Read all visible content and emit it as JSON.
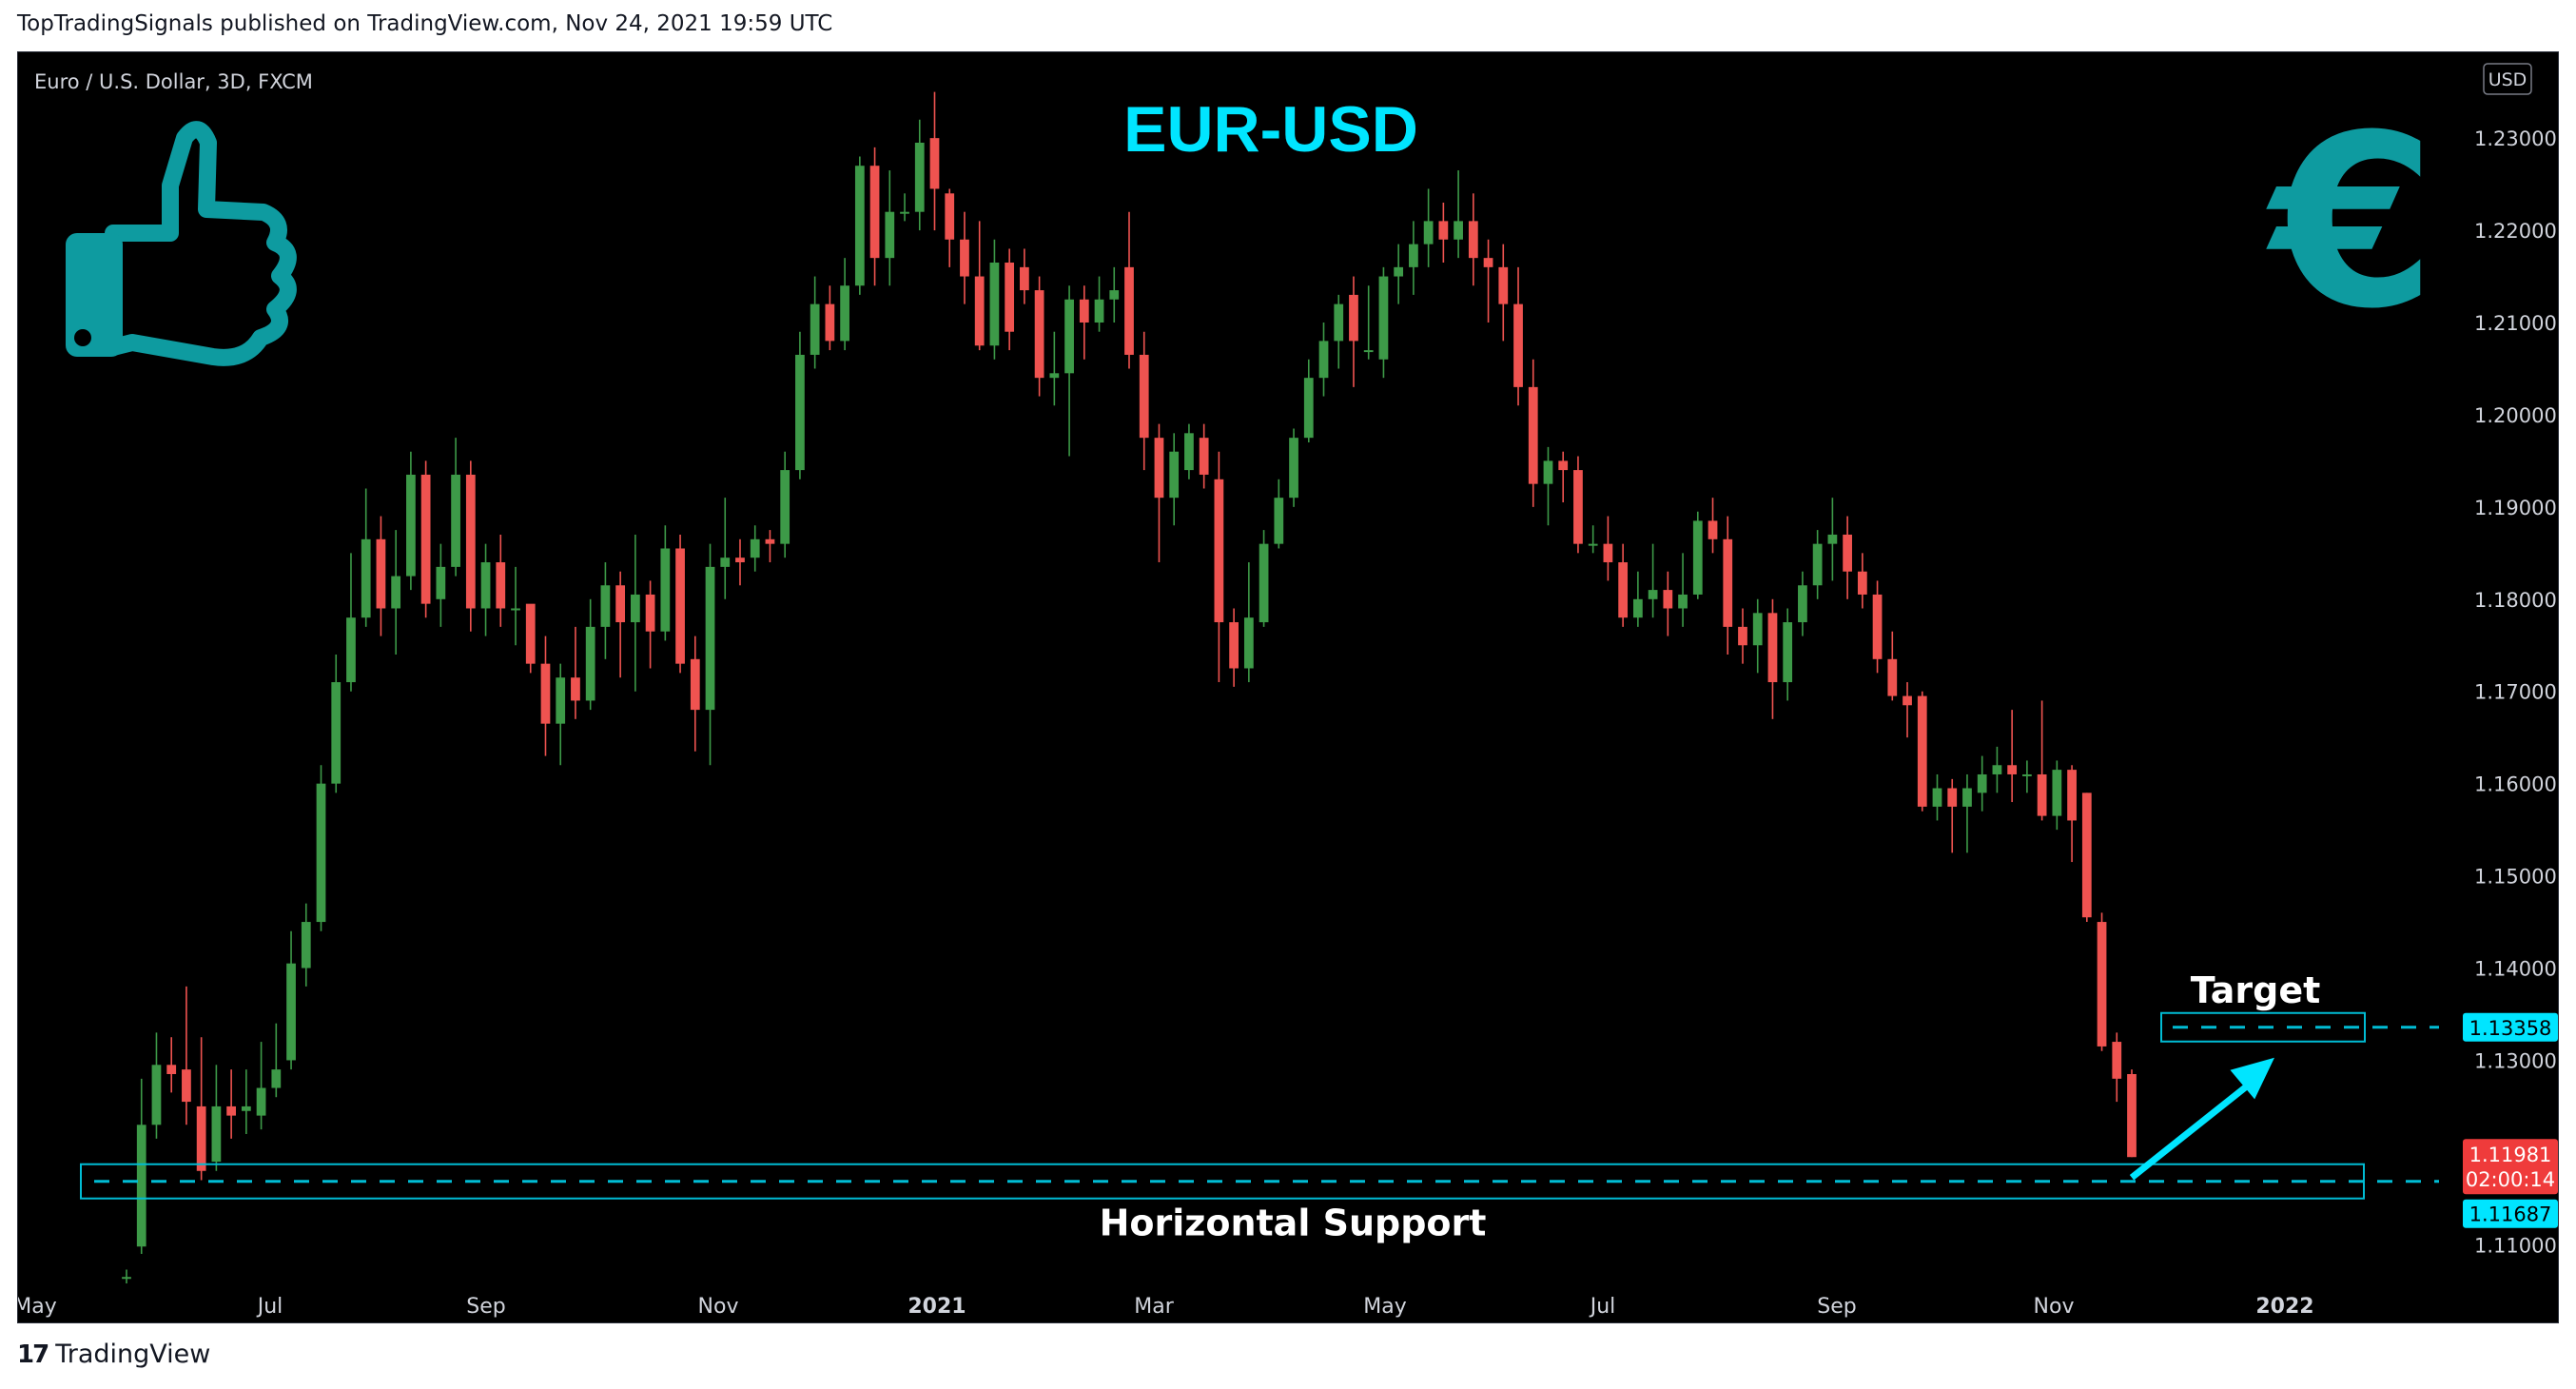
{
  "publisher": "TopTradingSignals published on TradingView.com, Nov 24, 2021 19:59 UTC",
  "footer": {
    "brand": "TradingView",
    "logo_icon": "tradingview-logo-icon"
  },
  "colors": {
    "bg": "#000000",
    "up": "#26a69a",
    "up_body": "#3d9a48",
    "down": "#ef5350",
    "teal": "#00bcd4",
    "cyan": "#00e5ff",
    "axis_text": "#d1d4dc",
    "icon": "#0e9ba0"
  },
  "chart_data": {
    "type": "candlestick",
    "symbol_label": "Euro / U.S. Dollar, 3D, FXCM",
    "currency": "USD",
    "title": "EUR-USD",
    "ylim": [
      1.1057,
      1.2393
    ],
    "y_ticks": [
      "1.23000",
      "1.22000",
      "1.21000",
      "1.20000",
      "1.19000",
      "1.18000",
      "1.17000",
      "1.16000",
      "1.15000",
      "1.14000",
      "1.13000",
      "1.11000"
    ],
    "x_ticks": [
      {
        "label": "May",
        "bold": false
      },
      {
        "label": "Jul",
        "bold": false
      },
      {
        "label": "Sep",
        "bold": false
      },
      {
        "label": "Nov",
        "bold": false
      },
      {
        "label": "2021",
        "bold": true
      },
      {
        "label": "Mar",
        "bold": false
      },
      {
        "label": "May",
        "bold": false
      },
      {
        "label": "Jul",
        "bold": false
      },
      {
        "label": "Sep",
        "bold": false
      },
      {
        "label": "Nov",
        "bold": false
      },
      {
        "label": "2022",
        "bold": true
      }
    ],
    "candles": [
      [
        1.1065,
        1.1065,
        1.1058,
        1.1073
      ],
      [
        1.1098,
        1.123,
        1.109,
        1.128
      ],
      [
        1.123,
        1.1295,
        1.1215,
        1.133
      ],
      [
        1.1295,
        1.1285,
        1.1265,
        1.1325
      ],
      [
        1.129,
        1.1255,
        1.123,
        1.138
      ],
      [
        1.125,
        1.118,
        1.117,
        1.1325
      ],
      [
        1.119,
        1.125,
        1.118,
        1.1295
      ],
      [
        1.125,
        1.124,
        1.1215,
        1.129
      ],
      [
        1.1245,
        1.125,
        1.122,
        1.129
      ],
      [
        1.124,
        1.127,
        1.1225,
        1.132
      ],
      [
        1.127,
        1.129,
        1.126,
        1.134
      ],
      [
        1.13,
        1.1405,
        1.129,
        1.144
      ],
      [
        1.14,
        1.145,
        1.138,
        1.147
      ],
      [
        1.145,
        1.16,
        1.144,
        1.162
      ],
      [
        1.16,
        1.171,
        1.159,
        1.174
      ],
      [
        1.171,
        1.178,
        1.17,
        1.185
      ],
      [
        1.178,
        1.1865,
        1.177,
        1.192
      ],
      [
        1.1865,
        1.179,
        1.176,
        1.189
      ],
      [
        1.179,
        1.1825,
        1.174,
        1.1875
      ],
      [
        1.1825,
        1.1935,
        1.181,
        1.196
      ],
      [
        1.1935,
        1.1795,
        1.178,
        1.195
      ],
      [
        1.18,
        1.1835,
        1.177,
        1.186
      ],
      [
        1.1835,
        1.1935,
        1.1825,
        1.1975
      ],
      [
        1.1935,
        1.179,
        1.1765,
        1.195
      ],
      [
        1.179,
        1.184,
        1.176,
        1.186
      ],
      [
        1.184,
        1.179,
        1.177,
        1.187
      ],
      [
        1.179,
        1.179,
        1.175,
        1.1835
      ],
      [
        1.1795,
        1.173,
        1.172,
        1.179
      ],
      [
        1.173,
        1.1665,
        1.163,
        1.176
      ],
      [
        1.1665,
        1.1715,
        1.162,
        1.173
      ],
      [
        1.1715,
        1.169,
        1.167,
        1.177
      ],
      [
        1.169,
        1.177,
        1.168,
        1.18
      ],
      [
        1.177,
        1.1815,
        1.1735,
        1.184
      ],
      [
        1.1815,
        1.1775,
        1.1715,
        1.183
      ],
      [
        1.1775,
        1.1805,
        1.17,
        1.187
      ],
      [
        1.1805,
        1.1765,
        1.1725,
        1.182
      ],
      [
        1.1765,
        1.1855,
        1.1755,
        1.188
      ],
      [
        1.1855,
        1.173,
        1.172,
        1.187
      ],
      [
        1.1735,
        1.168,
        1.1635,
        1.176
      ],
      [
        1.168,
        1.1835,
        1.162,
        1.186
      ],
      [
        1.1835,
        1.1845,
        1.18,
        1.191
      ],
      [
        1.1845,
        1.184,
        1.1815,
        1.1865
      ],
      [
        1.1845,
        1.1865,
        1.183,
        1.188
      ],
      [
        1.1865,
        1.186,
        1.184,
        1.1875
      ],
      [
        1.186,
        1.194,
        1.1845,
        1.196
      ],
      [
        1.194,
        1.2065,
        1.193,
        1.209
      ],
      [
        1.2065,
        1.212,
        1.205,
        1.215
      ],
      [
        1.212,
        1.208,
        1.207,
        1.214
      ],
      [
        1.208,
        1.214,
        1.207,
        1.217
      ],
      [
        1.214,
        1.227,
        1.213,
        1.228
      ],
      [
        1.227,
        1.217,
        1.214,
        1.229
      ],
      [
        1.217,
        1.222,
        1.214,
        1.2265
      ],
      [
        1.222,
        1.222,
        1.221,
        1.224
      ],
      [
        1.222,
        1.2295,
        1.22,
        1.232
      ],
      [
        1.23,
        1.2245,
        1.22,
        1.235
      ],
      [
        1.224,
        1.219,
        1.216,
        1.2245
      ],
      [
        1.219,
        1.215,
        1.212,
        1.222
      ],
      [
        1.215,
        1.2075,
        1.207,
        1.221
      ],
      [
        1.2075,
        1.2165,
        1.206,
        1.219
      ],
      [
        1.2165,
        1.209,
        1.207,
        1.218
      ],
      [
        1.216,
        1.2135,
        1.212,
        1.218
      ],
      [
        1.2135,
        1.204,
        1.202,
        1.215
      ],
      [
        1.204,
        1.2045,
        1.201,
        1.209
      ],
      [
        1.2045,
        1.2125,
        1.1955,
        1.214
      ],
      [
        1.2125,
        1.21,
        1.206,
        1.214
      ],
      [
        1.21,
        1.2125,
        1.209,
        1.215
      ],
      [
        1.2125,
        1.2135,
        1.21,
        1.216
      ],
      [
        1.216,
        1.2065,
        1.205,
        1.222
      ],
      [
        1.2065,
        1.1975,
        1.194,
        1.209
      ],
      [
        1.1975,
        1.191,
        1.184,
        1.199
      ],
      [
        1.191,
        1.196,
        1.188,
        1.198
      ],
      [
        1.194,
        1.198,
        1.193,
        1.199
      ],
      [
        1.1975,
        1.1935,
        1.192,
        1.199
      ],
      [
        1.193,
        1.1775,
        1.171,
        1.196
      ],
      [
        1.1775,
        1.1725,
        1.1705,
        1.179
      ],
      [
        1.1725,
        1.178,
        1.171,
        1.184
      ],
      [
        1.1775,
        1.186,
        1.177,
        1.1875
      ],
      [
        1.186,
        1.191,
        1.1855,
        1.193
      ],
      [
        1.191,
        1.1975,
        1.19,
        1.1985
      ],
      [
        1.1975,
        1.204,
        1.197,
        1.206
      ],
      [
        1.204,
        1.208,
        1.202,
        1.21
      ],
      [
        1.208,
        1.212,
        1.205,
        1.213
      ],
      [
        1.213,
        1.208,
        1.203,
        1.215
      ],
      [
        1.207,
        1.207,
        1.206,
        1.214
      ],
      [
        1.206,
        1.215,
        1.204,
        1.216
      ],
      [
        1.215,
        1.216,
        1.212,
        1.2185
      ],
      [
        1.216,
        1.2185,
        1.213,
        1.221
      ],
      [
        1.2185,
        1.221,
        1.216,
        1.2245
      ],
      [
        1.221,
        1.219,
        1.2165,
        1.223
      ],
      [
        1.219,
        1.221,
        1.217,
        1.2265
      ],
      [
        1.221,
        1.217,
        1.214,
        1.224
      ],
      [
        1.217,
        1.216,
        1.21,
        1.219
      ],
      [
        1.216,
        1.212,
        1.208,
        1.2185
      ],
      [
        1.212,
        1.203,
        1.201,
        1.216
      ],
      [
        1.203,
        1.1925,
        1.19,
        1.206
      ],
      [
        1.1925,
        1.195,
        1.188,
        1.1965
      ],
      [
        1.195,
        1.194,
        1.1905,
        1.196
      ],
      [
        1.194,
        1.186,
        1.185,
        1.1955
      ],
      [
        1.186,
        1.186,
        1.185,
        1.188
      ],
      [
        1.186,
        1.184,
        1.182,
        1.189
      ],
      [
        1.184,
        1.178,
        1.177,
        1.186
      ],
      [
        1.178,
        1.18,
        1.177,
        1.183
      ],
      [
        1.18,
        1.181,
        1.178,
        1.186
      ],
      [
        1.181,
        1.179,
        1.176,
        1.183
      ],
      [
        1.179,
        1.1805,
        1.177,
        1.185
      ],
      [
        1.1805,
        1.1885,
        1.18,
        1.1895
      ],
      [
        1.1885,
        1.1865,
        1.185,
        1.191
      ],
      [
        1.1865,
        1.177,
        1.174,
        1.189
      ],
      [
        1.177,
        1.175,
        1.173,
        1.179
      ],
      [
        1.175,
        1.1785,
        1.172,
        1.18
      ],
      [
        1.1785,
        1.171,
        1.167,
        1.18
      ],
      [
        1.171,
        1.1775,
        1.169,
        1.179
      ],
      [
        1.1775,
        1.1815,
        1.176,
        1.183
      ],
      [
        1.1815,
        1.186,
        1.18,
        1.1875
      ],
      [
        1.186,
        1.187,
        1.182,
        1.191
      ],
      [
        1.187,
        1.183,
        1.18,
        1.189
      ],
      [
        1.183,
        1.1805,
        1.179,
        1.185
      ],
      [
        1.1805,
        1.1735,
        1.172,
        1.182
      ],
      [
        1.1735,
        1.1695,
        1.169,
        1.1765
      ],
      [
        1.1695,
        1.1685,
        1.165,
        1.171
      ],
      [
        1.1695,
        1.1575,
        1.157,
        1.17
      ],
      [
        1.1575,
        1.1595,
        1.156,
        1.161
      ],
      [
        1.1595,
        1.1575,
        1.1525,
        1.1605
      ],
      [
        1.1575,
        1.1595,
        1.1525,
        1.161
      ],
      [
        1.159,
        1.161,
        1.157,
        1.163
      ],
      [
        1.161,
        1.162,
        1.159,
        1.164
      ],
      [
        1.162,
        1.161,
        1.158,
        1.168
      ],
      [
        1.161,
        1.161,
        1.159,
        1.1625
      ],
      [
        1.161,
        1.1565,
        1.156,
        1.169
      ],
      [
        1.1565,
        1.1615,
        1.155,
        1.1625
      ],
      [
        1.1615,
        1.156,
        1.1515,
        1.162
      ],
      [
        1.159,
        1.1455,
        1.145,
        1.159
      ],
      [
        1.145,
        1.1315,
        1.131,
        1.146
      ],
      [
        1.132,
        1.128,
        1.1255,
        1.133
      ],
      [
        1.1285,
        1.1195,
        1.1195,
        1.129
      ]
    ],
    "support": {
      "value": 1.11687,
      "label": "Horizontal Support"
    },
    "target": {
      "value": 1.13358,
      "label": "Target"
    },
    "last_price": {
      "value": "1.11981",
      "countdown": "02:00:14"
    }
  }
}
